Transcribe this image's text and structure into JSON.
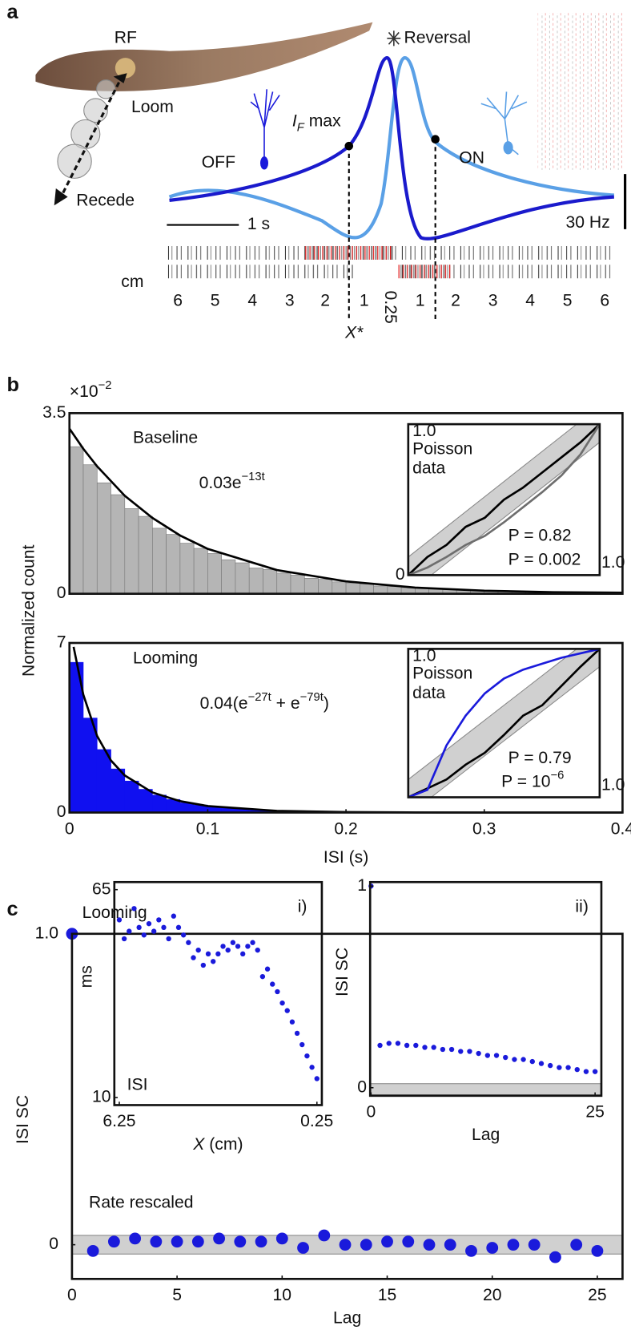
{
  "panels": [
    "a",
    "b",
    "c"
  ],
  "diagram": {
    "rf": "RF",
    "loom": "Loom",
    "recede": "Recede",
    "off": "OFF",
    "on": "ON",
    "if_max": {
      "base": "I",
      "sub": "F",
      "rest": " max"
    },
    "reversal": "Reversal",
    "time_scale": "1 s",
    "rate_scale": "30 Hz",
    "distance_unit": "cm",
    "distance_ticks": [
      6,
      5,
      4,
      3,
      2,
      1,
      0.25,
      1,
      2,
      3,
      4,
      5,
      6
    ],
    "x_star": "X*"
  },
  "chart_data": [
    {
      "type": "histogram",
      "annotation": "Baseline",
      "formula": [
        {
          "base": "0.03e",
          "sup": "−13t"
        }
      ],
      "ylabel": "Normalized count",
      "y_multiplier": {
        "base": "×10",
        "sup": "−2"
      },
      "color": "#b5b5b5",
      "edge": "#7a7a7a",
      "xlim": [
        0,
        0.4
      ],
      "ylim": [
        0,
        3.5
      ],
      "yticks": [
        0,
        3.5
      ],
      "bins": [
        0,
        0.01,
        0.02,
        0.03,
        0.04,
        0.05,
        0.06,
        0.07,
        0.08,
        0.09,
        0.1,
        0.11,
        0.12,
        0.13,
        0.14,
        0.15,
        0.16,
        0.17,
        0.18,
        0.19,
        0.2,
        0.21,
        0.22,
        0.23,
        0.24,
        0.25,
        0.26,
        0.27,
        0.28,
        0.29,
        0.3,
        0.31,
        0.32,
        0.33,
        0.34,
        0.35,
        0.36,
        0.37,
        0.38,
        0.39,
        0.4
      ],
      "values": [
        2.85,
        2.5,
        2.15,
        1.92,
        1.65,
        1.5,
        1.27,
        1.15,
        0.98,
        0.88,
        0.78,
        0.66,
        0.6,
        0.5,
        0.47,
        0.4,
        0.36,
        0.3,
        0.28,
        0.23,
        0.21,
        0.19,
        0.15,
        0.14,
        0.12,
        0.11,
        0.09,
        0.08,
        0.07,
        0.07,
        0.05,
        0.05,
        0.04,
        0.04,
        0.03,
        0.03,
        0.03,
        0.02,
        0.02,
        0.02
      ],
      "fit": {
        "color": "#000000",
        "x": [
          0,
          0.01,
          0.02,
          0.04,
          0.06,
          0.08,
          0.1,
          0.15,
          0.2,
          0.25,
          0.3,
          0.35,
          0.4
        ],
        "values": [
          3.2,
          2.81,
          2.47,
          1.9,
          1.47,
          1.13,
          0.87,
          0.46,
          0.24,
          0.12,
          0.06,
          0.03,
          0.02
        ]
      }
    },
    {
      "type": "histogram",
      "annotation": "Looming",
      "formula": [
        {
          "base": "0.04(e",
          "sup": "−27t"
        },
        {
          "base": " + e",
          "sup": "−79t"
        },
        {
          "base": ")"
        }
      ],
      "xlabel": "ISI (s)",
      "color": "#1010f0",
      "edge": "#1010f0",
      "xlim": [
        0,
        0.4
      ],
      "ylim": [
        0,
        7
      ],
      "yticks": [
        0,
        7
      ],
      "xticks": [
        0,
        0.1,
        0.2,
        0.3,
        0.4
      ],
      "bins": [
        0,
        0.01,
        0.02,
        0.03,
        0.04,
        0.05,
        0.06,
        0.07,
        0.08,
        0.09,
        0.1,
        0.11,
        0.12,
        0.13,
        0.14,
        0.15,
        0.16,
        0.17,
        0.18,
        0.19,
        0.2,
        0.21,
        0.22,
        0.23,
        0.24,
        0.25
      ],
      "values": [
        6.2,
        3.9,
        2.6,
        1.8,
        1.3,
        0.96,
        0.72,
        0.54,
        0.4,
        0.31,
        0.24,
        0.18,
        0.14,
        0.1,
        0.08,
        0.06,
        0.05,
        0.04,
        0.03,
        0.02,
        0.02,
        0.01,
        0.01,
        0.01,
        0.01
      ],
      "fit": {
        "color": "#000000",
        "x": [
          0.003,
          0.01,
          0.02,
          0.03,
          0.04,
          0.06,
          0.08,
          0.1,
          0.15,
          0.2,
          0.25,
          0.3,
          0.35,
          0.4
        ],
        "values": [
          6.84,
          4.87,
          3.16,
          2.15,
          1.53,
          0.83,
          0.47,
          0.27,
          0.07,
          0.02,
          0.005,
          0,
          0,
          0
        ]
      }
    },
    {
      "type": "line",
      "xlim": [
        0,
        1
      ],
      "ylim": [
        0,
        1
      ],
      "band": 0.12,
      "yticks": [
        0,
        {
          "value": 1,
          "label": "1.0"
        }
      ],
      "xticks": [
        {
          "value": 1,
          "label": "1.0"
        }
      ],
      "x": [
        0,
        0.1,
        0.2,
        0.3,
        0.4,
        0.5,
        0.6,
        0.7,
        0.8,
        0.9,
        1
      ],
      "series": [
        {
          "name": "Poisson",
          "color": "#000000",
          "values": [
            0,
            0.12,
            0.2,
            0.32,
            0.38,
            0.5,
            0.58,
            0.68,
            0.78,
            0.88,
            1
          ]
        },
        {
          "name": "data",
          "color": "#6e6e6e",
          "values": [
            0,
            0.05,
            0.12,
            0.2,
            0.26,
            0.35,
            0.45,
            0.55,
            0.66,
            0.8,
            1
          ]
        }
      ],
      "annotations": [
        {
          "base": "P = 0.82",
          "color": "#000000"
        },
        {
          "base": "P = 0.002",
          "color": "#7a7a7a"
        }
      ]
    },
    {
      "type": "line",
      "xlim": [
        0,
        1
      ],
      "ylim": [
        0,
        1
      ],
      "band": 0.12,
      "yticks": [
        {
          "value": 1,
          "label": "1.0"
        }
      ],
      "xticks": [
        {
          "value": 1,
          "label": "1.0"
        }
      ],
      "x": [
        0,
        0.1,
        0.2,
        0.3,
        0.4,
        0.5,
        0.6,
        0.7,
        0.8,
        0.9,
        1
      ],
      "series": [
        {
          "name": "Poisson",
          "color": "#000000",
          "values": [
            0,
            0.06,
            0.12,
            0.22,
            0.3,
            0.42,
            0.55,
            0.62,
            0.75,
            0.88,
            1
          ]
        },
        {
          "name": "data",
          "color": "#1a1adb",
          "values": [
            0,
            0.05,
            0.35,
            0.55,
            0.7,
            0.8,
            0.86,
            0.9,
            0.94,
            0.97,
            1
          ]
        }
      ],
      "annotations": [
        {
          "base": "P = 0.79",
          "color": "#000000"
        },
        {
          "base": "P = 10",
          "sup": "−6",
          "color": "#1a1adb"
        }
      ]
    },
    {
      "type": "scatter",
      "ylabel": "ISI SC",
      "xlabel": "Lag",
      "xlim": [
        0,
        26.2
      ],
      "ylim": [
        -0.11,
        1
      ],
      "xticks": [
        0,
        5,
        10,
        15,
        20,
        25
      ],
      "yticks": [
        0,
        {
          "value": 1,
          "label": "1.0"
        }
      ],
      "band": [
        -0.03,
        0.03
      ],
      "series": [
        {
          "name": "Looming",
          "color": "#1a1adb",
          "x": [
            0
          ],
          "values": [
            1
          ]
        },
        {
          "name": "Rate rescaled",
          "color": "#1a1adb",
          "x": [
            1,
            2,
            3,
            4,
            5,
            6,
            7,
            8,
            9,
            10,
            11,
            12,
            13,
            14,
            15,
            16,
            17,
            18,
            19,
            20,
            21,
            22,
            23,
            24,
            25
          ],
          "values": [
            -0.02,
            0.01,
            0.02,
            0.01,
            0.01,
            0.01,
            0.02,
            0.01,
            0.01,
            0.02,
            -0.01,
            0.03,
            0,
            0,
            0.01,
            0.01,
            0,
            0,
            -0.02,
            -0.01,
            0,
            0,
            -0.04,
            0,
            -0.02
          ]
        }
      ]
    },
    {
      "type": "scatter",
      "panel": "i)",
      "ylabel": "ms",
      "annotation": "ISI",
      "xlabel": {
        "base": "X",
        "rest": " (cm)"
      },
      "xlim": [
        6.4,
        0.1
      ],
      "ylim": [
        8,
        67
      ],
      "xticks": [
        6.25,
        0.25
      ],
      "yticks": [
        10,
        65
      ],
      "series": [
        {
          "color": "#1a1adb",
          "x": [
            6.25,
            6.1,
            5.95,
            5.8,
            5.65,
            5.5,
            5.35,
            5.2,
            5.05,
            4.9,
            4.75,
            4.6,
            4.45,
            4.3,
            4.15,
            4.0,
            3.85,
            3.7,
            3.55,
            3.4,
            3.25,
            3.1,
            2.95,
            2.8,
            2.65,
            2.5,
            2.35,
            2.2,
            2.05,
            1.9,
            1.75,
            1.6,
            1.45,
            1.3,
            1.15,
            1.0,
            0.85,
            0.7,
            0.55,
            0.4,
            0.25
          ],
          "values": [
            57,
            52,
            54,
            60,
            55,
            53,
            56,
            54,
            57,
            55,
            52,
            58,
            55,
            53,
            51,
            47,
            49,
            45,
            48,
            46,
            48,
            50,
            49,
            51,
            50,
            48,
            50,
            51,
            49,
            42,
            44,
            40,
            38,
            35,
            33,
            30,
            27,
            24,
            21,
            18,
            15
          ]
        }
      ]
    },
    {
      "type": "scatter",
      "panel": "ii)",
      "ylabel": "ISI SC",
      "xlabel": "Lag",
      "xlim": [
        -0.1,
        25.7
      ],
      "ylim": [
        -0.04,
        1.02
      ],
      "xticks": [
        0,
        25
      ],
      "yticks": [
        0,
        1
      ],
      "band": [
        -0.035,
        0.02
      ],
      "series": [
        {
          "color": "#1a1adb",
          "x": [
            0,
            1,
            2,
            3,
            4,
            5,
            6,
            7,
            8,
            9,
            10,
            11,
            12,
            13,
            14,
            15,
            16,
            17,
            18,
            19,
            20,
            21,
            22,
            23,
            24,
            25
          ],
          "values": [
            1,
            0.21,
            0.22,
            0.22,
            0.21,
            0.21,
            0.2,
            0.2,
            0.19,
            0.19,
            0.18,
            0.18,
            0.17,
            0.16,
            0.16,
            0.15,
            0.14,
            0.14,
            0.13,
            0.12,
            0.11,
            0.1,
            0.1,
            0.09,
            0.08,
            0.08
          ]
        }
      ]
    }
  ]
}
